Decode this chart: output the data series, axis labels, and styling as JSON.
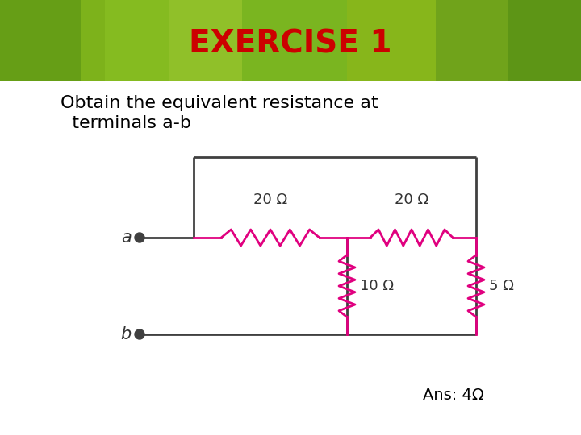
{
  "title": "EXERCISE 1",
  "title_color": "#cc0000",
  "title_fontsize": 28,
  "title_fontstyle": "bold",
  "subtitle_line1": "Obtain the equivalent resistance at",
  "subtitle_line2": "  terminals a-b",
  "subtitle_fontsize": 16,
  "ans_text": "Ans: 4Ω",
  "ans_fontsize": 14,
  "resistor_color": "#e0007f",
  "wire_color": "#404040",
  "label_color": "#333333",
  "r20a_label": "20 Ω",
  "r20b_label": "20 Ω",
  "r10_label": "10 Ω",
  "r5_label": "5 Ω",
  "a_label": "a",
  "b_label": "b",
  "banner_colors": [
    "#7ab520",
    "#5a9010",
    "#8dc020",
    "#a0c830",
    "#90b818",
    "#6a9818",
    "#4a8010"
  ]
}
